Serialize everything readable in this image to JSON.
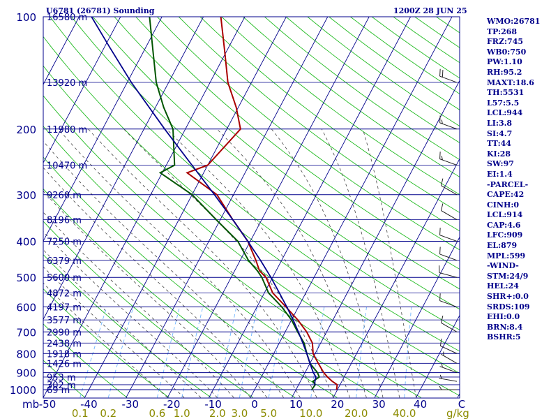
{
  "header": {
    "station": "U6781 (26781) Sounding",
    "time": "1200Z 28 JUN 25"
  },
  "indices": [
    "WMO:26781",
    "TP:268",
    "FRZ:745",
    "WB0:750",
    "PW:1.10",
    "RH:95.2",
    "MAXT:18.6",
    "TH:5531",
    "L57:5.5",
    "LCL:944",
    "LI:3.8",
    "SI:4.7",
    "TT:44",
    "KI:28",
    "SW:97",
    "EI:1.4",
    "-PARCEL-",
    "CAPE:42",
    "CINH:0",
    "LCL:914",
    "CAP:4.6",
    "LFC:909",
    "EL:879",
    "MPL:599",
    "-WIND-",
    "STM:24/9",
    "HEL:24",
    "SHR+:0.0",
    "SRDS:109",
    "EHI:0.0",
    "BRN:8.4",
    "BSHR:5"
  ],
  "colors": {
    "isobar": "#00008b",
    "isotherm": "#00008b",
    "dry_adiabat": "#22bb22",
    "moist_adiabat": "#444444",
    "mixing_ratio": "#6fb5ff",
    "temperature": "#aa0000",
    "dewpoint": "#005500",
    "parcel": "#00008b",
    "wind_barb": "#222222",
    "pressure_label": "#00008b",
    "temperature_label": "#00008b",
    "mixing_ratio_label": "#8b8b00"
  },
  "chart_data": {
    "type": "line",
    "title": "U6781 (26781) Sounding 1200Z 28 JUN 25",
    "diagram": "skew-T log-P",
    "y_scale": "log",
    "ylim": [
      1000,
      100
    ],
    "xlim": [
      -50,
      50
    ],
    "pressure_levels": [
      100,
      200,
      300,
      400,
      500,
      600,
      700,
      800,
      900,
      1000
    ],
    "pressure_tick_labels": [
      "100",
      "200",
      "300",
      "400",
      "500",
      "600",
      "700",
      "800",
      "900",
      "1000"
    ],
    "temperature_ticks": [
      -50,
      -40,
      -30,
      -20,
      -10,
      0,
      10,
      20,
      30,
      40,
      50
    ],
    "temperature_tick_labels": [
      "-50",
      "-40",
      "-30",
      "-20",
      "-10",
      "0",
      "10",
      "20",
      "30",
      "40",
      "C"
    ],
    "x_axis_left_label": "mb",
    "mixing_ratio_labels": [
      {
        "label": "0.1",
        "value": 0.1
      },
      {
        "label": "0.2",
        "value": 0.2
      },
      {
        "label": "0.6",
        "value": 0.6
      },
      {
        "label": "1.0",
        "value": 1.0
      },
      {
        "label": "2.0",
        "value": 2.0
      },
      {
        "label": "3.0",
        "value": 3.0
      },
      {
        "label": "5.0",
        "value": 5.0
      },
      {
        "label": "10.0",
        "value": 10.0
      },
      {
        "label": "20.0",
        "value": 20.0
      },
      {
        "label": "40.0",
        "value": 40.0
      }
    ],
    "mixing_ratio_unit": "g/kg",
    "height_labels": [
      {
        "p": 1000,
        "label": "69 m"
      },
      {
        "p": 970,
        "label": "302 m"
      },
      {
        "p": 925,
        "label": "953 m"
      },
      {
        "p": 850,
        "label": "1426 m"
      },
      {
        "p": 800,
        "label": "1918 m"
      },
      {
        "p": 750,
        "label": "2438 m"
      },
      {
        "p": 700,
        "label": "2990 m"
      },
      {
        "p": 650,
        "label": "3577 m"
      },
      {
        "p": 600,
        "label": "4197 m"
      },
      {
        "p": 550,
        "label": "4872 m"
      },
      {
        "p": 500,
        "label": "5600 m"
      },
      {
        "p": 450,
        "label": "6379 m"
      },
      {
        "p": 400,
        "label": "7250 m"
      },
      {
        "p": 350,
        "label": "8196 m"
      },
      {
        "p": 300,
        "label": "9260 m"
      },
      {
        "p": 250,
        "label": "10470 m"
      },
      {
        "p": 200,
        "label": "11980 m"
      },
      {
        "p": 150,
        "label": "13920 m"
      },
      {
        "p": 100,
        "label": "16580 m"
      }
    ],
    "series": [
      {
        "role": "temperature",
        "points": [
          [
            1000,
            19.8
          ],
          [
            970,
            19.3
          ],
          [
            950,
            17.7
          ],
          [
            925,
            16.0
          ],
          [
            900,
            14.5
          ],
          [
            850,
            12.0
          ],
          [
            800,
            9.5
          ],
          [
            750,
            8.0
          ],
          [
            700,
            5.2
          ],
          [
            650,
            1.5
          ],
          [
            600,
            -3.0
          ],
          [
            550,
            -8.0
          ],
          [
            500,
            -11.6
          ],
          [
            480,
            -14.0
          ],
          [
            450,
            -16.2
          ],
          [
            400,
            -20.6
          ],
          [
            350,
            -27.0
          ],
          [
            300,
            -34.0
          ],
          [
            262,
            -44.0
          ],
          [
            250,
            -40.0
          ],
          [
            200,
            -36.7
          ],
          [
            175,
            -40.5
          ],
          [
            150,
            -45.7
          ],
          [
            125,
            -50.2
          ],
          [
            100,
            -55.8
          ]
        ]
      },
      {
        "role": "dewpoint",
        "points": [
          [
            1000,
            13.8
          ],
          [
            970,
            14.0
          ],
          [
            950,
            13.0
          ],
          [
            925,
            14.0
          ],
          [
            900,
            13.0
          ],
          [
            850,
            10.0
          ],
          [
            800,
            8.0
          ],
          [
            750,
            6.0
          ],
          [
            700,
            3.0
          ],
          [
            650,
            0.0
          ],
          [
            600,
            -4.0
          ],
          [
            550,
            -9.0
          ],
          [
            500,
            -12.6
          ],
          [
            480,
            -14.5
          ],
          [
            450,
            -18.0
          ],
          [
            400,
            -23.0
          ],
          [
            350,
            -31.0
          ],
          [
            300,
            -40.0
          ],
          [
            262,
            -50.5
          ],
          [
            250,
            -48.0
          ],
          [
            200,
            -53.0
          ],
          [
            175,
            -58.0
          ],
          [
            150,
            -63.0
          ],
          [
            125,
            -67.5
          ],
          [
            100,
            -73.0
          ]
        ]
      },
      {
        "role": "parcel",
        "points": [
          [
            975,
            14.0
          ],
          [
            950,
            13.5
          ],
          [
            925,
            13.2
          ],
          [
            900,
            12.0
          ],
          [
            850,
            10.0
          ],
          [
            800,
            8.0
          ],
          [
            750,
            5.7
          ],
          [
            700,
            3.2
          ],
          [
            650,
            0.4
          ],
          [
            600,
            -2.8
          ],
          [
            550,
            -6.4
          ],
          [
            500,
            -10.4
          ],
          [
            450,
            -15.1
          ],
          [
            400,
            -20.6
          ],
          [
            350,
            -27.0
          ],
          [
            300,
            -34.6
          ],
          [
            250,
            -43.8
          ],
          [
            200,
            -55.0
          ],
          [
            150,
            -69.0
          ],
          [
            120,
            -79.0
          ],
          [
            100,
            -87.0
          ]
        ]
      }
    ],
    "wind_barbs": [
      {
        "p": 1000,
        "dir": 270,
        "kt": 5
      },
      {
        "p": 950,
        "dir": 280,
        "kt": 5
      },
      {
        "p": 900,
        "dir": 290,
        "kt": 5
      },
      {
        "p": 850,
        "dir": 300,
        "kt": 5
      },
      {
        "p": 800,
        "dir": 295,
        "kt": 10
      },
      {
        "p": 700,
        "dir": 300,
        "kt": 10
      },
      {
        "p": 600,
        "dir": 290,
        "kt": 10
      },
      {
        "p": 500,
        "dir": 285,
        "kt": 10
      },
      {
        "p": 450,
        "dir": 290,
        "kt": 10
      },
      {
        "p": 400,
        "dir": 290,
        "kt": 10
      },
      {
        "p": 350,
        "dir": 300,
        "kt": 10
      },
      {
        "p": 300,
        "dir": 300,
        "kt": 10
      },
      {
        "p": 250,
        "dir": 290,
        "kt": 15
      },
      {
        "p": 200,
        "dir": 290,
        "kt": 15
      },
      {
        "p": 150,
        "dir": 290,
        "kt": 20
      }
    ]
  }
}
